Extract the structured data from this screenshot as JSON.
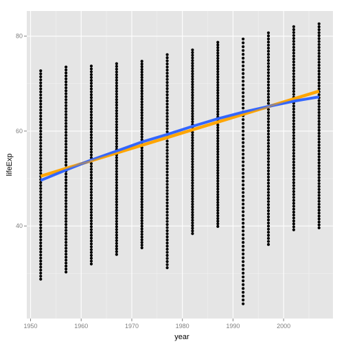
{
  "chart_data": {
    "type": "scatter",
    "title": "",
    "xlabel": "year",
    "ylabel": "lifeExp",
    "xlim": [
      1949.25,
      2009.75
    ],
    "ylim": [
      20.5,
      85.3
    ],
    "x_ticks": [
      1950,
      1960,
      1970,
      1980,
      1990,
      2000
    ],
    "y_ticks": [
      40,
      60,
      80
    ],
    "x_tick_labels": [
      "1950",
      "1960",
      "1970",
      "1980",
      "1990",
      "2000"
    ],
    "y_tick_labels": [
      "40",
      "60",
      "80"
    ],
    "grid": true,
    "legend": "none",
    "colors": {
      "panel_background": "#e5e5e5",
      "grid_major": "#ffffff",
      "grid_minor": "#f2f2f2",
      "points": "#000000",
      "smooth_line": "#3366ff",
      "linear_fit_line": "#ffa500"
    },
    "point_columns": [
      {
        "year": 1952,
        "min": 28.8,
        "max": 72.7
      },
      {
        "year": 1957,
        "min": 30.3,
        "max": 73.5
      },
      {
        "year": 1962,
        "min": 32.0,
        "max": 73.7
      },
      {
        "year": 1967,
        "min": 34.0,
        "max": 74.2
      },
      {
        "year": 1972,
        "min": 35.4,
        "max": 74.7
      },
      {
        "year": 1977,
        "min": 31.2,
        "max": 76.1
      },
      {
        "year": 1982,
        "min": 38.4,
        "max": 77.1
      },
      {
        "year": 1987,
        "min": 39.9,
        "max": 78.7
      },
      {
        "year": 1992,
        "min": 23.6,
        "max": 79.4
      },
      {
        "year": 1997,
        "min": 36.1,
        "max": 80.7
      },
      {
        "year": 2002,
        "min": 39.2,
        "max": 82.0
      },
      {
        "year": 2007,
        "min": 39.6,
        "max": 82.6
      }
    ],
    "series": [
      {
        "type": "smooth",
        "x": [
          1952,
          1957,
          1962,
          1967,
          1972,
          1977,
          1982,
          1987,
          1992,
          1997,
          2002,
          2007
        ],
        "y": [
          49.6,
          51.8,
          53.9,
          55.8,
          57.7,
          59.3,
          61.0,
          62.6,
          64.0,
          65.2,
          66.3,
          67.2
        ]
      },
      {
        "type": "linear",
        "x": [
          1952,
          2007
        ],
        "y": [
          50.5,
          68.4
        ]
      }
    ]
  }
}
